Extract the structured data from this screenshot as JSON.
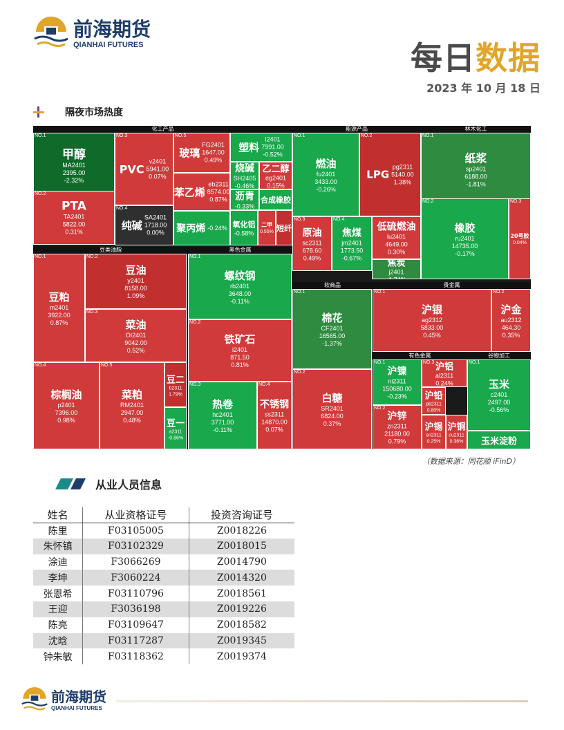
{
  "logo": {
    "cn": "前海期货",
    "en": "QIANHAI FUTURES"
  },
  "header": {
    "title_a": "每日",
    "title_b": "数据",
    "date": "2023 年 10 月 18 日"
  },
  "section1_title": "隔夜市场热度",
  "groups": [
    "化工产品",
    "能源产品",
    "林木化工",
    "豆类油脂",
    "黑色金属",
    "软商品",
    "贵金属",
    "有色金属",
    "谷物加工"
  ],
  "tiles": [
    {
      "no": "NO.1",
      "name": "甲醇",
      "code": "MA2401",
      "price": "2395.00",
      "chg": "-2.32%",
      "color": "g3"
    },
    {
      "no": "NO.2",
      "name": "PTA",
      "code": "TA2401",
      "price": "5822.00",
      "chg": "0.31%",
      "color": "r1"
    },
    {
      "no": "NO.3",
      "name": "PVC",
      "code": "v2401",
      "price": "5941.00",
      "chg": "0.07%",
      "color": "r1"
    },
    {
      "no": "NO.4",
      "name": "纯碱",
      "code": "SA2401",
      "price": "1718.00",
      "chg": "0.00%",
      "color": "k"
    },
    {
      "no": "NO.5",
      "name": "玻璃",
      "code": "FG2401",
      "price": "1647.00",
      "chg": "0.49%",
      "color": "r1"
    },
    {
      "no": "",
      "name": "苯乙烯",
      "code": "eb2311",
      "price": "8574.00",
      "chg": "0.87%",
      "color": "r1"
    },
    {
      "no": "",
      "name": "聚丙烯",
      "code": "",
      "price": "",
      "chg": "-0.24%",
      "color": "g1"
    },
    {
      "no": "",
      "name": "塑料",
      "code": "l2401",
      "price": "7991.00",
      "chg": "-0.52%",
      "color": "g1"
    },
    {
      "no": "",
      "name": "烧碱",
      "code": "SH2405",
      "price": "",
      "chg": "-0.46%",
      "color": "g1"
    },
    {
      "no": "",
      "name": "乙二醇",
      "code": "eg2401",
      "price": "",
      "chg": "0.15%",
      "color": "r1"
    },
    {
      "no": "",
      "name": "沥青",
      "code": "",
      "price": "",
      "chg": "-0.33%",
      "color": "g1"
    },
    {
      "no": "",
      "name": "合成橡胶",
      "code": "",
      "price": "",
      "chg": "",
      "color": "g1"
    },
    {
      "no": "",
      "name": "氧化铝",
      "code": "",
      "price": "",
      "chg": "-0.58%",
      "color": "g1"
    },
    {
      "no": "",
      "name": "二甲",
      "code": "",
      "price": "",
      "chg": "0.55%",
      "color": "r1"
    },
    {
      "no": "",
      "name": "短纤",
      "code": "",
      "price": "",
      "chg": "",
      "color": "r2"
    },
    {
      "no": "NO.1",
      "name": "燃油",
      "code": "fu2401",
      "price": "3433.00",
      "chg": "-0.26%",
      "color": "g1"
    },
    {
      "no": "NO.2",
      "name": "LPG",
      "code": "pg2311",
      "price": "5140.00",
      "chg": "1.38%",
      "color": "r2"
    },
    {
      "no": "NO.3",
      "name": "原油",
      "code": "sc2311",
      "price": "678.60",
      "chg": "0.49%",
      "color": "r1"
    },
    {
      "no": "NO.4",
      "name": "焦煤",
      "code": "jm2401",
      "price": "1773.50",
      "chg": "-0.67%",
      "color": "g1"
    },
    {
      "no": "",
      "name": "低硫燃油",
      "code": "lu2401",
      "price": "4649.00",
      "chg": "0.30%",
      "color": "r1"
    },
    {
      "no": "",
      "name": "焦炭",
      "code": "j2401",
      "price": "",
      "chg": "-1.74%",
      "color": "g2"
    },
    {
      "no": "NO.1",
      "name": "纸浆",
      "code": "sp2401",
      "price": "6188.00",
      "chg": "-1.81%",
      "color": "g2"
    },
    {
      "no": "NO.2",
      "name": "橡胶",
      "code": "ru2401",
      "price": "14735.00",
      "chg": "-0.17%",
      "color": "g1"
    },
    {
      "no": "NO.3",
      "name": "20号胶",
      "code": "",
      "price": "",
      "chg": "0.04%",
      "color": "r1"
    },
    {
      "no": "NO.1",
      "name": "豆粕",
      "code": "m2401",
      "price": "3922.00",
      "chg": "0.87%",
      "color": "r1"
    },
    {
      "no": "NO.2",
      "name": "豆油",
      "code": "y2401",
      "price": "8158.00",
      "chg": "1.09%",
      "color": "r2"
    },
    {
      "no": "NO.3",
      "name": "菜油",
      "code": "OI2401",
      "price": "9042.00",
      "chg": "0.52%",
      "color": "r1"
    },
    {
      "no": "NO.4",
      "name": "棕榈油",
      "code": "p2401",
      "price": "7396.00",
      "chg": "0.98%",
      "color": "r1"
    },
    {
      "no": "NO.5",
      "name": "菜粕",
      "code": "RM2401",
      "price": "2947.00",
      "chg": "0.48%",
      "color": "r1"
    },
    {
      "no": "",
      "name": "豆二",
      "code": "b2311",
      "price": "",
      "chg": "1.79%",
      "color": "r2"
    },
    {
      "no": "",
      "name": "豆一",
      "code": "a2311",
      "price": "",
      "chg": "-0.86%",
      "color": "g1"
    },
    {
      "no": "NO.1",
      "name": "螺纹钢",
      "code": "rb2401",
      "price": "3648.00",
      "chg": "-0.11%",
      "color": "g1"
    },
    {
      "no": "NO.2",
      "name": "铁矿石",
      "code": "i2401",
      "price": "871.50",
      "chg": "0.81%",
      "color": "r1"
    },
    {
      "no": "NO.3",
      "name": "热卷",
      "code": "hc2401",
      "price": "3771.00",
      "chg": "-0.11%",
      "color": "g1"
    },
    {
      "no": "NO.4",
      "name": "不锈钢",
      "code": "ss2311",
      "price": "14870.00",
      "chg": "0.07%",
      "color": "r1"
    },
    {
      "no": "NO.1",
      "name": "棉花",
      "code": "CF2401",
      "price": "16565.00",
      "chg": "-1.37%",
      "color": "g2"
    },
    {
      "no": "NO.2",
      "name": "白糖",
      "code": "SR2401",
      "price": "6824.00",
      "chg": "0.37%",
      "color": "r1"
    },
    {
      "no": "NO.1",
      "name": "沪银",
      "code": "ag2312",
      "price": "5833.00",
      "chg": "0.45%",
      "color": "r1"
    },
    {
      "no": "NO.2",
      "name": "沪金",
      "code": "au2312",
      "price": "464.30",
      "chg": "0.35%",
      "color": "r1"
    },
    {
      "no": "NO.1",
      "name": "沪镍",
      "code": "ni2311",
      "price": "150680.00",
      "chg": "-0.23%",
      "color": "g1"
    },
    {
      "no": "NO.2",
      "name": "沪锌",
      "code": "zn2311",
      "price": "21180.00",
      "chg": "0.79%",
      "color": "r1"
    },
    {
      "no": "NO.3",
      "name": "沪铝",
      "code": "al2311",
      "price": "",
      "chg": "0.24%",
      "color": "r1"
    },
    {
      "no": "",
      "name": "沪铅",
      "code": "pb2311",
      "price": "",
      "chg": "0.80%",
      "color": "r1"
    },
    {
      "no": "",
      "name": "沪锡",
      "code": "sn2311",
      "price": "",
      "chg": "0.25%",
      "color": "r1"
    },
    {
      "no": "",
      "name": "沪铜",
      "code": "cu2311",
      "price": "",
      "chg": "0.36%",
      "color": "r1"
    },
    {
      "no": "NO.1",
      "name": "玉米",
      "code": "c2401",
      "price": "2497.00",
      "chg": "-0.56%",
      "color": "g1"
    },
    {
      "no": "",
      "name": "玉米淀粉",
      "code": "",
      "price": "",
      "chg": "",
      "color": "g1"
    }
  ],
  "source": "（数据来源：同花顺 iFinD）",
  "section2_title": "从业人员信息",
  "staff": {
    "headers": [
      "姓名",
      "从业资格证号",
      "投资咨询证号"
    ],
    "rows": [
      [
        "陈里",
        "F03105005",
        "Z0018226"
      ],
      [
        "朱怀镇",
        "F03102329",
        "Z0018015"
      ],
      [
        "涂迪",
        "F3066269",
        "Z0014790"
      ],
      [
        "李坤",
        "F3060224",
        "Z0014320"
      ],
      [
        "张恩希",
        "F03110796",
        "Z0018561"
      ],
      [
        "王迎",
        "F3036198",
        "Z0019226"
      ],
      [
        "陈亮",
        "F03109647",
        "Z0018582"
      ],
      [
        "沈晗",
        "F03117287",
        "Z0019345"
      ],
      [
        "钟朱敏",
        "F03118362",
        "Z0019374"
      ]
    ]
  }
}
